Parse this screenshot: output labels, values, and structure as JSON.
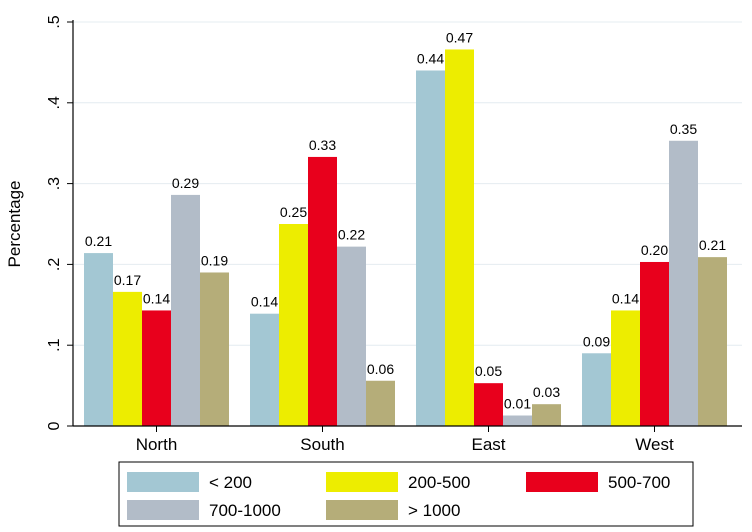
{
  "chart_data": {
    "type": "bar",
    "title": "",
    "xlabel": "",
    "ylabel": "Percentage",
    "ylim": [
      0,
      0.5
    ],
    "yticks": [
      {
        "value": 0,
        "label": "0"
      },
      {
        "value": 0.1,
        "label": ".1"
      },
      {
        "value": 0.2,
        "label": ".2"
      },
      {
        "value": 0.3,
        "label": ".3"
      },
      {
        "value": 0.4,
        "label": ".4"
      },
      {
        "value": 0.5,
        "label": ".5"
      }
    ],
    "grid": "horizontal",
    "legend_position": "bottom",
    "categories": [
      "North",
      "South",
      "East",
      "West"
    ],
    "series": [
      {
        "name": "< 200",
        "color": "#a3c7d3",
        "values": [
          0.214,
          0.139,
          0.44,
          0.09
        ],
        "labels": [
          "0.21",
          "0.14",
          "0.44",
          "0.09"
        ]
      },
      {
        "name": "200-500",
        "color": "#eded00",
        "values": [
          0.166,
          0.25,
          0.466,
          0.143
        ],
        "labels": [
          "0.17",
          "0.25",
          "0.47",
          "0.14"
        ]
      },
      {
        "name": "500-700",
        "color": "#e8001c",
        "values": [
          0.143,
          0.333,
          0.053,
          0.203
        ],
        "labels": [
          "0.14",
          "0.33",
          "0.05",
          "0.20"
        ]
      },
      {
        "name": "700-1000",
        "color": "#b2bcc8",
        "values": [
          0.286,
          0.222,
          0.013,
          0.353
        ],
        "labels": [
          "0.29",
          "0.22",
          "0.01",
          "0.35"
        ]
      },
      {
        "name": "> 1000",
        "color": "#b5ad79",
        "values": [
          0.19,
          0.056,
          0.027,
          0.209
        ],
        "labels": [
          "0.19",
          "0.06",
          "0.03",
          "0.21"
        ]
      }
    ]
  }
}
